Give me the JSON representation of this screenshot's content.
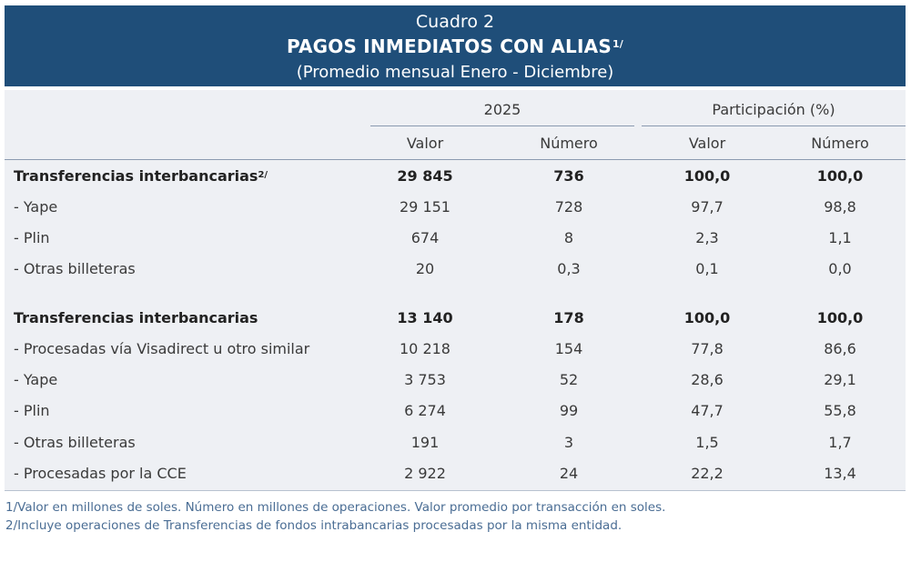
{
  "header": {
    "subtitle": "Cuadro 2",
    "title": "PAGOS INMEDIATOS CON ALIAS",
    "title_note": "1/",
    "period": "(Promedio mensual Enero - Diciembre)"
  },
  "columns": {
    "group1": "2025",
    "group2": "Participación  (%)",
    "valor": "Valor",
    "numero": "Número"
  },
  "rows": [
    {
      "label": "Transferencias interbancarias",
      "note": "2/",
      "bold": true,
      "values": [
        "29 845",
        "736",
        "100,0",
        "100,0"
      ]
    },
    {
      "label": "- Yape",
      "note": "",
      "bold": false,
      "values": [
        "29 151",
        "728",
        "97,7",
        "98,8"
      ]
    },
    {
      "label": "- Plin",
      "note": "",
      "bold": false,
      "values": [
        "674",
        "8",
        "2,3",
        "1,1"
      ]
    },
    {
      "label": "- Otras billeteras",
      "note": "",
      "bold": false,
      "values": [
        "20",
        "0,3",
        "0,1",
        "0,0"
      ]
    },
    {
      "label": "Transferencias interbancarias",
      "note": "",
      "bold": true,
      "values": [
        "13 140",
        "178",
        "100,0",
        "100,0"
      ]
    },
    {
      "label": "- Procesadas vía Visadirect u otro similar",
      "note": "",
      "bold": false,
      "values": [
        "10 218",
        "154",
        "77,8",
        "86,6"
      ]
    },
    {
      "label": "- Yape",
      "note": "",
      "bold": false,
      "values": [
        "3 753",
        "52",
        "28,6",
        "29,1"
      ]
    },
    {
      "label": "- Plin",
      "note": "",
      "bold": false,
      "values": [
        "6 274",
        "99",
        "47,7",
        "55,8"
      ]
    },
    {
      "label": "- Otras billeteras",
      "note": "",
      "bold": false,
      "values": [
        "191",
        "3",
        "1,5",
        "1,7"
      ]
    },
    {
      "label": "-  Procesadas por la CCE",
      "note": "",
      "bold": false,
      "values": [
        "2 922",
        "24",
        "22,2",
        "13,4"
      ]
    }
  ],
  "footnotes": [
    "1/Valor en millones de soles. Número en millones de operaciones. Valor promedio por transacción en soles.",
    "2/Incluye operaciones de Transferencias de fondos intrabancarias procesadas por la misma entidad."
  ],
  "colors": {
    "header_bg": "#1f4e79",
    "table_bg": "#eef0f4",
    "footnote": "#4a6d94"
  }
}
